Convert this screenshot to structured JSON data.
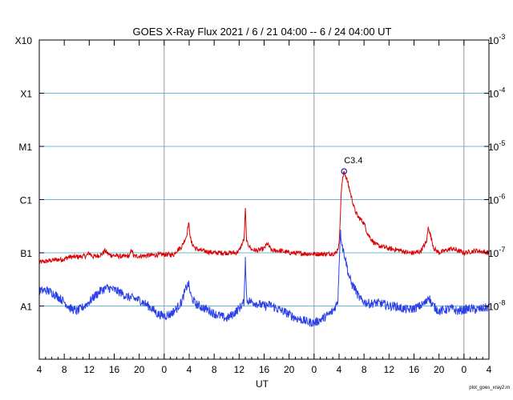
{
  "chart_data": {
    "type": "line",
    "title": "GOES X-Ray Flux   2021  /  6  /  21    04:00 --   6  /  24    04:00    UT",
    "xlabel": "UT",
    "x_tick_labels": [
      "4",
      "8",
      "12",
      "16",
      "20",
      "0",
      "4",
      "8",
      "12",
      "16",
      "20",
      "0",
      "4",
      "8",
      "12",
      "16",
      "20",
      "0",
      "4"
    ],
    "x_range_hours": [
      0,
      72
    ],
    "day_boundaries_hours": [
      20,
      44,
      68
    ],
    "y_scale": "log",
    "y_range_wm2": [
      1e-09,
      0.001
    ],
    "class_labels": [
      {
        "label": "X10",
        "flux": 0.001
      },
      {
        "label": "X1",
        "flux": 0.0001
      },
      {
        "label": "M1",
        "flux": 1e-05
      },
      {
        "label": "C1",
        "flux": 1e-06
      },
      {
        "label": "B1",
        "flux": 1e-07
      },
      {
        "label": "A1",
        "flux": 1e-08
      }
    ],
    "right_axis_labels": [
      {
        "base": "10",
        "exp": "-3",
        "flux": 0.001
      },
      {
        "base": "10",
        "exp": "-4",
        "flux": 0.0001
      },
      {
        "base": "10",
        "exp": "-5",
        "flux": 1e-05
      },
      {
        "base": "10",
        "exp": "-6",
        "flux": 1e-06
      },
      {
        "base": "10",
        "exp": "-7",
        "flux": 1e-07
      },
      {
        "base": "10",
        "exp": "-8",
        "flux": 1e-08
      }
    ],
    "horizontal_grid_flux": [
      0.0001,
      1e-05,
      1e-06,
      1e-07,
      1e-08
    ],
    "colors": {
      "long_channel": "#dd0000",
      "short_channel": "#2a3fe8",
      "grid": "#66bbdd",
      "day_line": "#999999",
      "marker": "#1a1aaa"
    },
    "series": [
      {
        "color": "#dd0000",
        "points": [
          [
            0,
            6.6e-08
          ],
          [
            1,
            6.9e-08
          ],
          [
            2,
            7.2e-08
          ],
          [
            3,
            7.5e-08
          ],
          [
            4,
            7.6e-08
          ],
          [
            4.8,
            8.4e-08
          ],
          [
            5.5,
            8.3e-08
          ],
          [
            6.5,
            8.5e-08
          ],
          [
            7.5,
            8.7e-08
          ],
          [
            8,
            9.9e-08
          ],
          [
            8.6,
            8.5e-08
          ],
          [
            9.5,
            8.9e-08
          ],
          [
            10,
            9.3e-08
          ],
          [
            10.5,
            1.1e-07
          ],
          [
            11.2,
            9.2e-08
          ],
          [
            12.5,
            8.7e-08
          ],
          [
            13.5,
            8.5e-08
          ],
          [
            14.5,
            8.8e-08
          ],
          [
            14.8,
            1.2e-07
          ],
          [
            15.1,
            8.6e-08
          ],
          [
            16,
            8.7e-08
          ],
          [
            18,
            9e-08
          ],
          [
            20,
            9.3e-08
          ],
          [
            21.5,
            9.2e-08
          ],
          [
            22,
            1.1e-07
          ],
          [
            22.8,
            1.3e-07
          ],
          [
            23.6,
            2.1e-07
          ],
          [
            23.9,
            3.7e-07
          ],
          [
            24.3,
            1.6e-07
          ],
          [
            25,
            1.2e-07
          ],
          [
            26,
            1.1e-07
          ],
          [
            28,
            1e-07
          ],
          [
            30,
            1e-07
          ],
          [
            31.5,
            1e-07
          ],
          [
            32,
            1.1e-07
          ],
          [
            32.8,
            1.8e-07
          ],
          [
            33,
            6.7e-07
          ],
          [
            33.2,
            1.6e-07
          ],
          [
            34,
            1.15e-07
          ],
          [
            35,
            1.1e-07
          ],
          [
            36,
            1.2e-07
          ],
          [
            36.5,
            1.5e-07
          ],
          [
            37.2,
            1.1e-07
          ],
          [
            38.5,
            1.1e-07
          ],
          [
            40,
            1e-07
          ],
          [
            42,
            9.7e-08
          ],
          [
            44,
            9.5e-08
          ],
          [
            46,
            9.5e-08
          ],
          [
            47.5,
            9.8e-08
          ],
          [
            48,
            1.4e-07
          ],
          [
            48.4,
            1.8e-06
          ],
          [
            48.8,
            3.4e-06
          ],
          [
            49.3,
            2.3e-06
          ],
          [
            50,
            1.1e-06
          ],
          [
            50.5,
            6.5e-07
          ],
          [
            51,
            4.8e-07
          ],
          [
            51.5,
            4.2e-07
          ],
          [
            52,
            3.6e-07
          ],
          [
            52.5,
            2.4e-07
          ],
          [
            53,
            1.9e-07
          ],
          [
            53.5,
            1.6e-07
          ],
          [
            54,
            1.4e-07
          ],
          [
            55,
            1.3e-07
          ],
          [
            56,
            1.2e-07
          ],
          [
            57,
            1.15e-07
          ],
          [
            58,
            1.1e-07
          ],
          [
            59,
            1e-07
          ],
          [
            60,
            1e-07
          ],
          [
            61,
            1.05e-07
          ],
          [
            62,
            1.6e-07
          ],
          [
            62.3,
            3.1e-07
          ],
          [
            62.7,
            2e-07
          ],
          [
            63.2,
            1.2e-07
          ],
          [
            64,
            1e-07
          ],
          [
            65,
            1.1e-07
          ],
          [
            66,
            1.2e-07
          ],
          [
            67,
            1.1e-07
          ],
          [
            68,
            1e-07
          ],
          [
            70,
            1.1e-07
          ],
          [
            72,
            1e-07
          ]
        ]
      },
      {
        "color": "#2a3fe8",
        "points": [
          [
            0,
            1.9e-08
          ],
          [
            1,
            2e-08
          ],
          [
            2,
            1.8e-08
          ],
          [
            3,
            1.5e-08
          ],
          [
            4,
            1.2e-08
          ],
          [
            5,
            9e-09
          ],
          [
            6,
            8e-09
          ],
          [
            7,
            9.5e-09
          ],
          [
            8,
            1.2e-08
          ],
          [
            9,
            1.6e-08
          ],
          [
            10,
            2e-08
          ],
          [
            11,
            2.2e-08
          ],
          [
            12,
            2e-08
          ],
          [
            13,
            1.8e-08
          ],
          [
            14,
            1.5e-08
          ],
          [
            15,
            1.4e-08
          ],
          [
            16,
            1.3e-08
          ],
          [
            17,
            1.1e-08
          ],
          [
            18,
            9e-09
          ],
          [
            19,
            7e-09
          ],
          [
            20,
            6.5e-09
          ],
          [
            21,
            7e-09
          ],
          [
            22,
            9e-09
          ],
          [
            22.8,
            1.2e-08
          ],
          [
            23.5,
            2.2e-08
          ],
          [
            23.9,
            2.6e-08
          ],
          [
            24.3,
            1.5e-08
          ],
          [
            25,
            1.1e-08
          ],
          [
            26,
            9.5e-09
          ],
          [
            27,
            8.5e-09
          ],
          [
            28,
            7.2e-09
          ],
          [
            29,
            6.5e-09
          ],
          [
            30,
            5.8e-09
          ],
          [
            31,
            7e-09
          ],
          [
            32,
            9e-09
          ],
          [
            32.8,
            1.2e-08
          ],
          [
            33,
            8.8e-08
          ],
          [
            33.2,
            1.3e-08
          ],
          [
            34,
            1.2e-08
          ],
          [
            35,
            1.1e-08
          ],
          [
            36,
            1e-08
          ],
          [
            37,
            1.05e-08
          ],
          [
            38,
            9e-09
          ],
          [
            39,
            8e-09
          ],
          [
            40,
            7e-09
          ],
          [
            41,
            6e-09
          ],
          [
            42,
            5.5e-09
          ],
          [
            43,
            5e-09
          ],
          [
            44,
            4.8e-09
          ],
          [
            45,
            5.5e-09
          ],
          [
            46,
            6.5e-09
          ],
          [
            47,
            8e-09
          ],
          [
            47.8,
            1.2e-08
          ],
          [
            48.2,
            2.5e-07
          ],
          [
            48.6,
            1.2e-07
          ],
          [
            49,
            8e-08
          ],
          [
            49.5,
            4e-08
          ],
          [
            50,
            2.6e-08
          ],
          [
            50.5,
            2.2e-08
          ],
          [
            51,
            1.6e-08
          ],
          [
            51.5,
            1.3e-08
          ],
          [
            52,
            1.2e-08
          ],
          [
            53,
            1.1e-08
          ],
          [
            54,
            1.15e-08
          ],
          [
            55,
            1.1e-08
          ],
          [
            56,
            1e-08
          ],
          [
            57,
            1e-08
          ],
          [
            58,
            9e-09
          ],
          [
            59,
            8.5e-09
          ],
          [
            60,
            9e-09
          ],
          [
            61,
            1e-08
          ],
          [
            62,
            1.2e-08
          ],
          [
            62.3,
            1.6e-08
          ],
          [
            62.8,
            1.1e-08
          ],
          [
            63.5,
            9e-09
          ],
          [
            64,
            8e-09
          ],
          [
            65,
            8.5e-09
          ],
          [
            66,
            9e-09
          ],
          [
            67,
            8e-09
          ],
          [
            68,
            8.5e-09
          ],
          [
            69,
            9e-09
          ],
          [
            70,
            8.5e-09
          ],
          [
            71,
            9e-09
          ],
          [
            72,
            9.5e-09
          ]
        ]
      }
    ],
    "annotations": [
      {
        "text": "C3.4",
        "x": 48.8,
        "flux": 3.4e-06
      }
    ]
  },
  "footer_text": "plot_goes_xray2.m"
}
